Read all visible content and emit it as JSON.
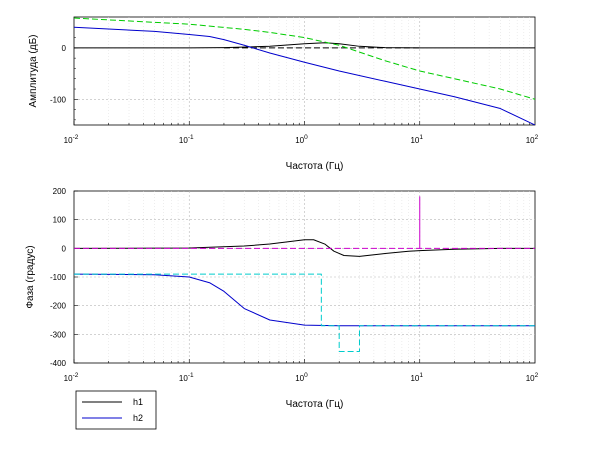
{
  "chart_data": [
    {
      "type": "line",
      "xscale": "log",
      "xlim": [
        0.01,
        100
      ],
      "ylim": [
        -150,
        60
      ],
      "xlabel": "Частота (Гц)",
      "ylabel": "Амплитуда (дБ)",
      "x_ticks": [
        {
          "value": 0.01,
          "base": "10",
          "exp": "-2"
        },
        {
          "value": 0.1,
          "base": "10",
          "exp": "-1"
        },
        {
          "value": 1,
          "base": "10",
          "exp": "0"
        },
        {
          "value": 10,
          "base": "10",
          "exp": "1"
        },
        {
          "value": 100,
          "base": "10",
          "exp": "2"
        }
      ],
      "y_ticks": [
        {
          "value": 0,
          "label": "0"
        },
        {
          "value": -100,
          "label": "-100"
        }
      ],
      "grid": true,
      "series": [
        {
          "color": "#000000",
          "style": "solid",
          "points": [
            [
              0.01,
              0
            ],
            [
              0.1,
              0
            ],
            [
              0.2,
              0.5
            ],
            [
              0.5,
              3
            ],
            [
              1,
              8
            ],
            [
              1.5,
              10
            ],
            [
              2,
              8
            ],
            [
              3,
              3
            ],
            [
              5,
              0.5
            ],
            [
              10,
              0
            ],
            [
              100,
              0
            ]
          ]
        },
        {
          "color": "#000000",
          "style": "dashed",
          "points": [
            [
              0.2,
              0
            ],
            [
              10,
              0
            ]
          ]
        },
        {
          "color": "#0000cc",
          "style": "solid",
          "points": [
            [
              0.01,
              40
            ],
            [
              0.05,
              32
            ],
            [
              0.1,
              26
            ],
            [
              0.15,
              22
            ],
            [
              0.2,
              16
            ],
            [
              0.3,
              5
            ],
            [
              0.5,
              -10
            ],
            [
              1,
              -28
            ],
            [
              2,
              -45
            ],
            [
              5,
              -65
            ],
            [
              10,
              -80
            ],
            [
              20,
              -95
            ],
            [
              50,
              -118
            ],
            [
              100,
              -150
            ]
          ]
        },
        {
          "color": "#00cc00",
          "style": "dashed",
          "points": [
            [
              0.01,
              58
            ],
            [
              0.1,
              46
            ],
            [
              0.3,
              36
            ],
            [
              0.5,
              30
            ],
            [
              1,
              20
            ],
            [
              2,
              5
            ],
            [
              5,
              -25
            ],
            [
              10,
              -45
            ],
            [
              20,
              -60
            ],
            [
              50,
              -80
            ],
            [
              100,
              -100
            ]
          ]
        }
      ]
    },
    {
      "type": "line",
      "xscale": "log",
      "xlim": [
        0.01,
        100
      ],
      "ylim": [
        -400,
        200
      ],
      "xlabel": "Частота (Гц)",
      "ylabel": "Фаза (градус)",
      "x_ticks": [
        {
          "value": 0.01,
          "base": "10",
          "exp": "-2"
        },
        {
          "value": 0.1,
          "base": "10",
          "exp": "-1"
        },
        {
          "value": 1,
          "base": "10",
          "exp": "0"
        },
        {
          "value": 10,
          "base": "10",
          "exp": "1"
        },
        {
          "value": 100,
          "base": "10",
          "exp": "2"
        }
      ],
      "y_ticks": [
        {
          "value": 200,
          "label": "200"
        },
        {
          "value": 100,
          "label": "100"
        },
        {
          "value": 0,
          "label": "0"
        },
        {
          "value": -100,
          "label": "-100"
        },
        {
          "value": -200,
          "label": "-200"
        },
        {
          "value": -300,
          "label": "-300"
        },
        {
          "value": -400,
          "label": "-400"
        }
      ],
      "grid": true,
      "series": [
        {
          "name": "h1",
          "color": "#000000",
          "style": "solid",
          "points": [
            [
              0.01,
              0
            ],
            [
              0.1,
              1
            ],
            [
              0.3,
              8
            ],
            [
              0.5,
              15
            ],
            [
              0.8,
              25
            ],
            [
              1,
              30
            ],
            [
              1.2,
              30
            ],
            [
              1.5,
              15
            ],
            [
              1.8,
              -10
            ],
            [
              2.2,
              -25
            ],
            [
              3,
              -28
            ],
            [
              5,
              -18
            ],
            [
              8,
              -10
            ],
            [
              10,
              -8
            ],
            [
              20,
              -3
            ],
            [
              50,
              0
            ],
            [
              100,
              0
            ]
          ]
        },
        {
          "color": "#cc00cc",
          "style": "dashed",
          "points": [
            [
              0.01,
              0
            ],
            [
              100,
              0
            ]
          ]
        },
        {
          "color": "#cc00cc",
          "style": "solid",
          "points": [
            [
              10,
              0
            ],
            [
              10,
              180
            ],
            [
              10,
              0
            ]
          ]
        },
        {
          "name": "h2",
          "color": "#0000cc",
          "style": "solid",
          "points": [
            [
              0.01,
              -90
            ],
            [
              0.05,
              -92
            ],
            [
              0.1,
              -100
            ],
            [
              0.15,
              -120
            ],
            [
              0.2,
              -150
            ],
            [
              0.3,
              -210
            ],
            [
              0.5,
              -250
            ],
            [
              1,
              -268
            ],
            [
              2,
              -270
            ],
            [
              10,
              -270
            ],
            [
              100,
              -270
            ]
          ]
        },
        {
          "color": "#00cccc",
          "style": "dashed",
          "points": [
            [
              0.01,
              -90
            ],
            [
              1.4,
              -90
            ],
            [
              1.4,
              -270
            ],
            [
              2,
              -270
            ],
            [
              2,
              -360
            ],
            [
              3,
              -360
            ],
            [
              3,
              -270
            ],
            [
              100,
              -270
            ]
          ]
        }
      ]
    }
  ],
  "legend": {
    "placement": "bottom-left",
    "entries": [
      {
        "label": "h1",
        "color": "#000000"
      },
      {
        "label": "h2",
        "color": "#0000cc"
      }
    ]
  }
}
